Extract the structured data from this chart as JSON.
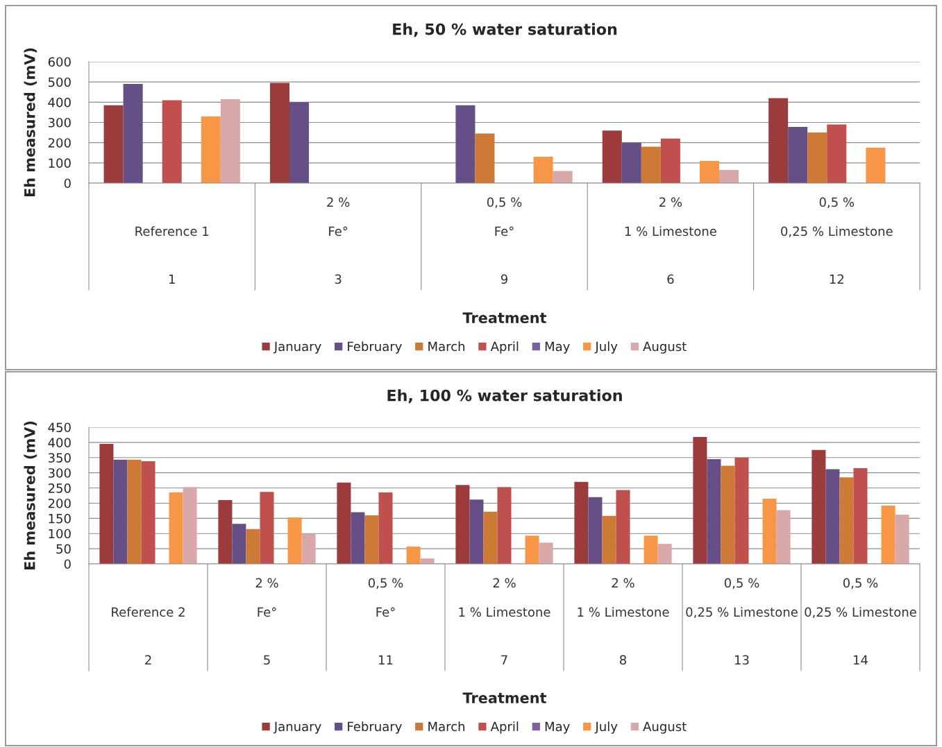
{
  "chart_data": [
    {
      "type": "bar",
      "title": "Eh, 50 % water saturation",
      "xlabel": "Treatment",
      "ylabel": "Eh measured (mV)",
      "ylim": [
        0,
        600
      ],
      "yticks": [
        0,
        100,
        200,
        300,
        400,
        500,
        600
      ],
      "grid": "y",
      "legend": "bottom",
      "categories": [
        "\nReference 1\n1",
        "2 %\nFe°\n3",
        "0,5 %\nFe°\n9",
        "2 %\n1 % Limestone\n6",
        "0,5 %\n0,25 % Limestone\n12"
      ],
      "series": [
        {
          "name": "January",
          "color": "#9b3b3b",
          "values": [
            385,
            495,
            null,
            260,
            420
          ]
        },
        {
          "name": "February",
          "color": "#664f87",
          "values": [
            490,
            400,
            385,
            200,
            278
          ]
        },
        {
          "name": "March",
          "color": "#cd7a37",
          "values": [
            null,
            null,
            245,
            180,
            250
          ]
        },
        {
          "name": "April",
          "color": "#c0504d",
          "values": [
            410,
            null,
            null,
            220,
            290
          ]
        },
        {
          "name": "May",
          "color": "#7e60a0",
          "values": [
            null,
            null,
            null,
            null,
            null
          ]
        },
        {
          "name": "July",
          "color": "#f79646",
          "values": [
            330,
            null,
            130,
            110,
            175
          ]
        },
        {
          "name": "August",
          "color": "#d9a9a9",
          "values": [
            415,
            null,
            60,
            65,
            null
          ]
        }
      ]
    },
    {
      "type": "bar",
      "title": "Eh, 100 % water saturation",
      "xlabel": "Treatment",
      "ylabel": "Eh measured (mV)",
      "ylim": [
        0,
        450
      ],
      "yticks": [
        0,
        50,
        100,
        150,
        200,
        250,
        300,
        350,
        400,
        450
      ],
      "grid": "y",
      "legend": "bottom",
      "categories": [
        "\nReference 2\n2",
        "2 %\nFe°\n5",
        "0,5 %\nFe°\n11",
        "2 %\n1 % Limestone\n7",
        "2 %\n1 % Limestone\n8",
        "0,5 %\n0,25 % Limestone\n13",
        "0,5 %\n0,25 % Limestone\n14"
      ],
      "series": [
        {
          "name": "January",
          "color": "#9b3b3b",
          "values": [
            395,
            210,
            268,
            260,
            270,
            418,
            375
          ]
        },
        {
          "name": "February",
          "color": "#664f87",
          "values": [
            343,
            132,
            170,
            212,
            220,
            345,
            312
          ]
        },
        {
          "name": "March",
          "color": "#cd7a37",
          "values": [
            343,
            115,
            160,
            172,
            158,
            323,
            285
          ]
        },
        {
          "name": "April",
          "color": "#c0504d",
          "values": [
            338,
            237,
            235,
            253,
            243,
            350,
            315
          ]
        },
        {
          "name": "May",
          "color": "#7e60a0",
          "values": [
            null,
            null,
            null,
            null,
            null,
            null,
            null
          ]
        },
        {
          "name": "July",
          "color": "#f79646",
          "values": [
            235,
            153,
            57,
            93,
            93,
            215,
            192
          ]
        },
        {
          "name": "August",
          "color": "#d9a9a9",
          "values": [
            253,
            98,
            18,
            70,
            66,
            177,
            162
          ]
        }
      ]
    }
  ]
}
